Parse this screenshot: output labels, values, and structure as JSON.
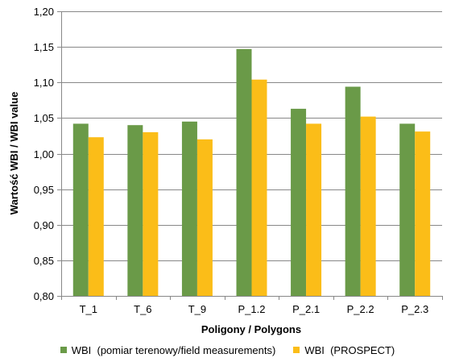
{
  "chart_data": {
    "type": "bar",
    "title": "",
    "xlabel": "Poligony / Polygons",
    "ylabel": "Wartość WBI / WBI value",
    "categories": [
      "T_1",
      "T_6",
      "T_9",
      "P_1.2",
      "P_2.1",
      "P_2.2",
      "P_2.3"
    ],
    "series": [
      {
        "name": "WBI  (pomiar terenowy/field measurements)",
        "color": "#6a9a48",
        "values": [
          1.042,
          1.04,
          1.045,
          1.147,
          1.063,
          1.094,
          1.042
        ]
      },
      {
        "name": "WBI  (PROSPECT)",
        "color": "#fbbd18",
        "values": [
          1.023,
          1.03,
          1.02,
          1.104,
          1.042,
          1.052,
          1.031
        ]
      }
    ],
    "ylim": [
      0.8,
      1.2
    ],
    "yticks": [
      "0,80",
      "0,85",
      "0,90",
      "0,95",
      "1,00",
      "1,05",
      "1,10",
      "1,15",
      "1,20"
    ],
    "grid": true,
    "legend_position": "bottom"
  }
}
